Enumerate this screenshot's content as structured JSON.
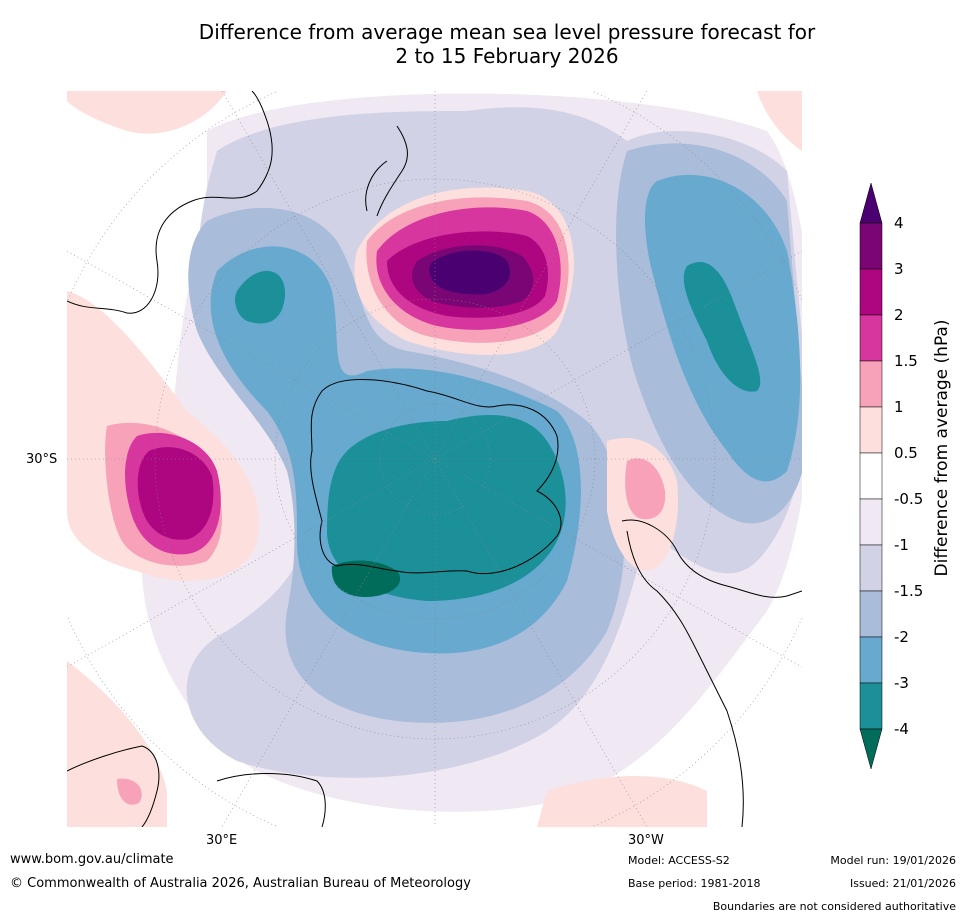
{
  "title": {
    "line1": "Difference from average mean sea level pressure forecast for",
    "line2": "2 to 15 February 2026"
  },
  "axis_labels": {
    "lat_left": "30°S",
    "lon_bottom_left": "30°E",
    "lon_bottom_right": "30°W"
  },
  "colorbar": {
    "label": "Difference from average (hPa)",
    "ticks": [
      "4",
      "3",
      "2",
      "1.5",
      "1",
      "0.5",
      "-0.5",
      "-1",
      "-1.5",
      "-2",
      "-3",
      "-4"
    ],
    "colors": {
      "over": "#4a0070",
      "c_3_4": "#7a0676",
      "c_2_3": "#ad0680",
      "c_15_2": "#d6369d",
      "c_1_15": "#f7a2b8",
      "c_05_1": "#fde0dd",
      "c_n05_05": "#ffffff",
      "c_n1_n05": "#f0e8f2",
      "c_n15_n1": "#d2d2e6",
      "c_n2_n15": "#a9bcd9",
      "c_n3_n2": "#67a9cf",
      "c_n4_n3": "#1c9099",
      "under": "#016c59"
    }
  },
  "footer": {
    "url": "www.bom.gov.au/climate",
    "copyright": "© Commonwealth of Australia 2026, Australian Bureau of Meteorology",
    "model": "Model: ACCESS-S2",
    "base_period": "Base period: 1981-2018",
    "model_run": "Model run: 19/01/2026",
    "issued": "Issued: 21/01/2026",
    "disclaimer": "Boundaries are not considered authoritative"
  }
}
